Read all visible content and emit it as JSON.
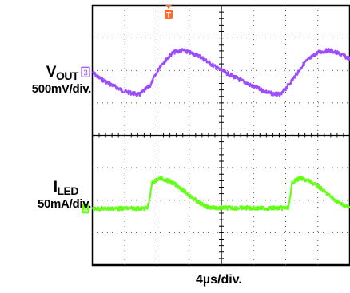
{
  "chart_data": {
    "type": "line",
    "x_divisions": 8,
    "y_divisions": 8,
    "grid": true,
    "trigger_marker": "T",
    "trigger_marker_color": "#ff6a2a",
    "time_scale": "4µs/div.",
    "x_range_div": [
      0,
      8
    ],
    "y_range_div": [
      -4,
      4
    ],
    "series": [
      {
        "channel": "3",
        "label_main": "V",
        "label_sub": "OUT",
        "scale": "500mV/div.",
        "color": "#9b4dff",
        "x_div": [
          0,
          0.15,
          0.5,
          1.0,
          1.45,
          1.8,
          2.1,
          2.5,
          2.8,
          3.3,
          3.9,
          4.5,
          5.0,
          5.5,
          5.85,
          6.2,
          6.6,
          7.0,
          7.35,
          7.7,
          8.0
        ],
        "y_div": [
          1.95,
          1.8,
          1.6,
          1.35,
          1.25,
          1.55,
          2.15,
          2.55,
          2.62,
          2.45,
          2.05,
          1.75,
          1.5,
          1.3,
          1.25,
          1.7,
          2.25,
          2.55,
          2.62,
          2.5,
          2.35
        ]
      },
      {
        "channel": "4",
        "label_main": "I",
        "label_sub": "LED",
        "scale": "50mA/div.",
        "color": "#66ff1a",
        "x_div": [
          0,
          1.7,
          1.78,
          1.85,
          2.1,
          2.4,
          2.7,
          3.0,
          3.3,
          3.6,
          3.9,
          4.3,
          4.8,
          5.3,
          5.8,
          6.08,
          6.15,
          6.2,
          6.45,
          6.75,
          7.05,
          7.35,
          7.65,
          7.95,
          8.0
        ],
        "y_div": [
          -2.26,
          -2.25,
          -1.9,
          -1.45,
          -1.32,
          -1.42,
          -1.6,
          -1.85,
          -2.08,
          -2.22,
          -2.24,
          -2.24,
          -2.24,
          -2.25,
          -2.24,
          -2.24,
          -1.9,
          -1.45,
          -1.32,
          -1.42,
          -1.6,
          -1.85,
          -2.08,
          -2.22,
          -2.24
        ]
      }
    ]
  }
}
